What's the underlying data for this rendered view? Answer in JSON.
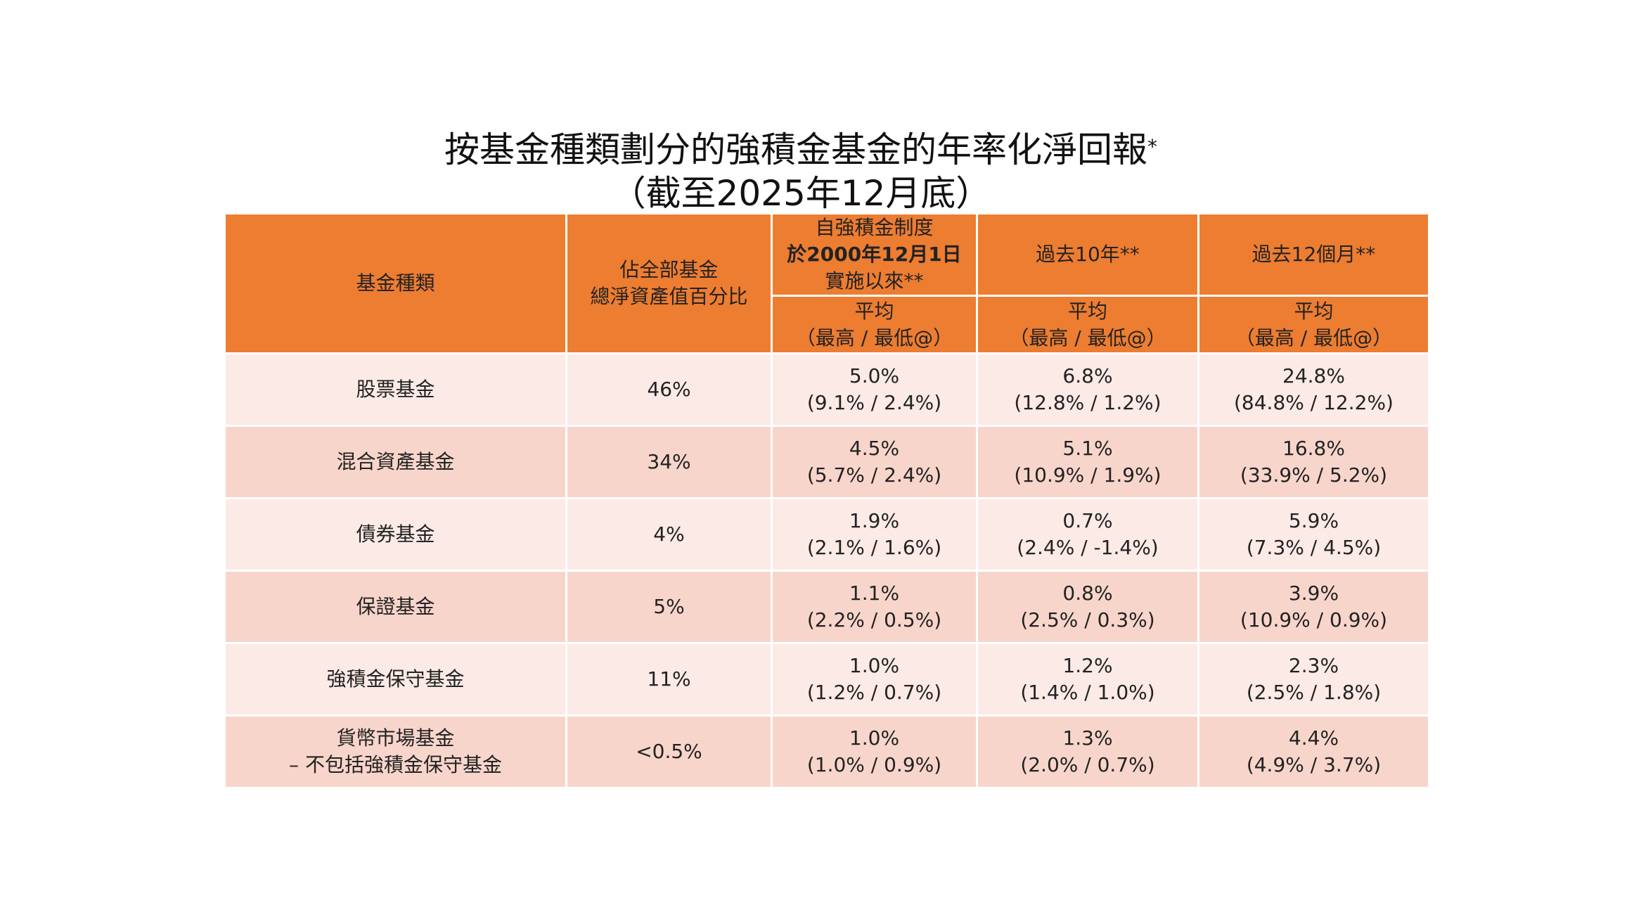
{
  "title": {
    "line1": "按基金種類劃分的強積金基金的年率化淨回報",
    "line1_mark": "*",
    "line2": "（截至2025年12月底）"
  },
  "colors": {
    "header": "#ED7D31",
    "row_light": "#FBEAE6",
    "row_dark": "#F8D5CB"
  },
  "header": {
    "fund_type": "基金種類",
    "share": [
      "佔全部基金",
      "總淨資產值百分比"
    ],
    "since_inception": [
      "自強積金制度",
      "於2000年12月1日",
      "實施以來**"
    ],
    "past_10y": "過去10年**",
    "past_12m": "過去12個月**",
    "sub": [
      "平均",
      "（最高 / 最低@）"
    ]
  },
  "rows": [
    {
      "name": [
        "股票基金"
      ],
      "share": "46%",
      "inc": [
        "5.0%",
        "(9.1% / 2.4%)"
      ],
      "y10": [
        "6.8%",
        "(12.8% / 1.2%)"
      ],
      "m12": [
        "24.8%",
        "(84.8% / 12.2%)"
      ]
    },
    {
      "name": [
        "混合資產基金"
      ],
      "share": "34%",
      "inc": [
        "4.5%",
        "(5.7% / 2.4%)"
      ],
      "y10": [
        "5.1%",
        "(10.9% / 1.9%)"
      ],
      "m12": [
        "16.8%",
        "(33.9% / 5.2%)"
      ]
    },
    {
      "name": [
        "債券基金"
      ],
      "share": "4%",
      "inc": [
        "1.9%",
        "(2.1% / 1.6%)"
      ],
      "y10": [
        "0.7%",
        "(2.4% / -1.4%)"
      ],
      "m12": [
        "5.9%",
        "(7.3% / 4.5%)"
      ]
    },
    {
      "name": [
        "保證基金"
      ],
      "share": "5%",
      "inc": [
        "1.1%",
        "(2.2% / 0.5%)"
      ],
      "y10": [
        "0.8%",
        "(2.5% / 0.3%)"
      ],
      "m12": [
        "3.9%",
        "(10.9% / 0.9%)"
      ]
    },
    {
      "name": [
        "強積金保守基金"
      ],
      "share": "11%",
      "inc": [
        "1.0%",
        "(1.2% / 0.7%)"
      ],
      "y10": [
        "1.2%",
        "(1.4% / 1.0%)"
      ],
      "m12": [
        "2.3%",
        "(2.5% / 1.8%)"
      ]
    },
    {
      "name": [
        "貨幣市場基金",
        "– 不包括強積金保守基金"
      ],
      "share": "<0.5%",
      "inc": [
        "1.0%",
        "(1.0% / 0.9%)"
      ],
      "y10": [
        "1.3%",
        "(2.0% / 0.7%)"
      ],
      "m12": [
        "4.4%",
        "(4.9% / 3.7%)"
      ]
    }
  ]
}
